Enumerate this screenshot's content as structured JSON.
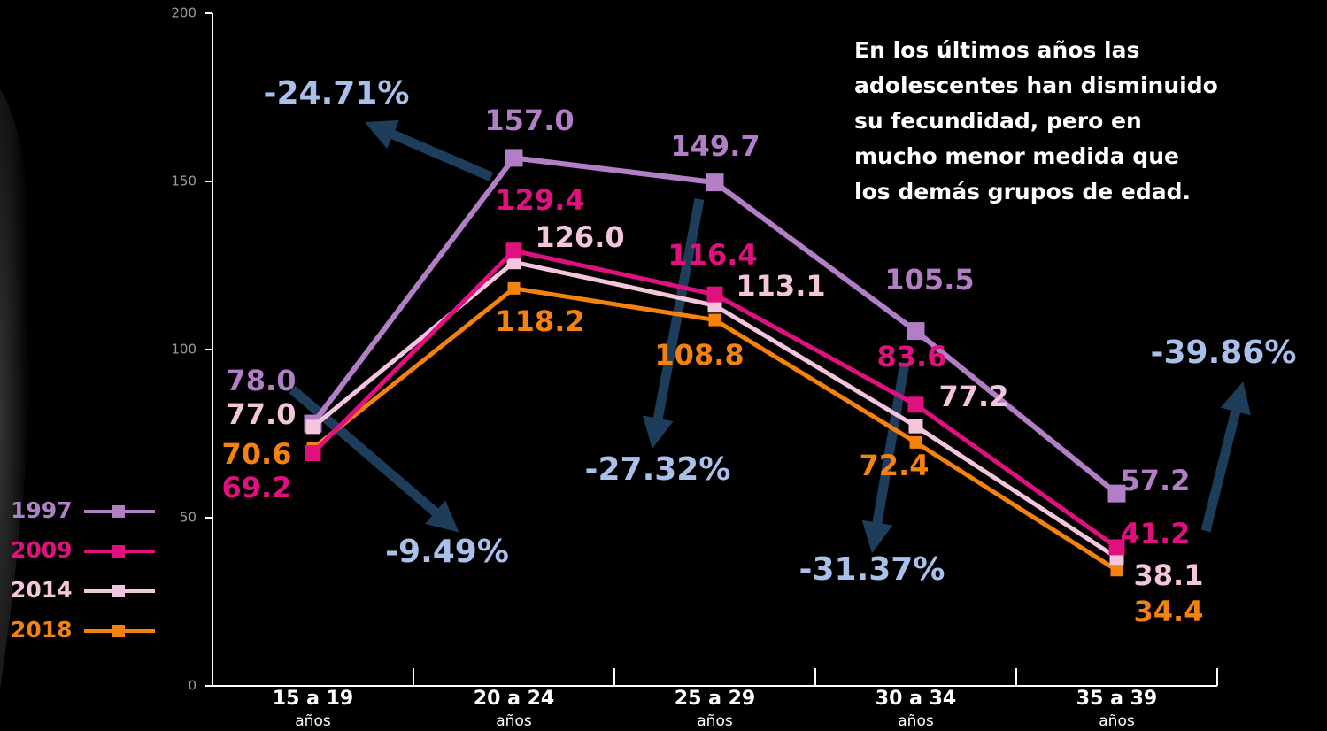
{
  "chart_data": {
    "type": "line",
    "categories": [
      "15 a 19",
      "20 a 24",
      "25 a 29",
      "30 a 34",
      "35 a 39"
    ],
    "category_sublabels": [
      "años",
      "años",
      "años",
      "años",
      "años"
    ],
    "series": [
      {
        "name": "1997",
        "color": "#b27ec6",
        "values": [
          78.0,
          157.0,
          149.7,
          105.5,
          57.2
        ],
        "value_labels": [
          "78.0",
          "157.0",
          "149.7",
          "105.5",
          "57.2"
        ]
      },
      {
        "name": "2009",
        "color": "#e0117f",
        "values": [
          69.2,
          129.4,
          116.4,
          83.6,
          41.2
        ],
        "value_labels": [
          "69.2",
          "129.4",
          "116.4",
          "83.6",
          "41.2"
        ]
      },
      {
        "name": "2014",
        "color": "#f4c6de",
        "values": [
          77.0,
          126.0,
          113.1,
          77.2,
          38.1
        ],
        "value_labels": [
          "77.0",
          "126.0",
          "113.1",
          "77.2",
          "38.1"
        ]
      },
      {
        "name": "2018",
        "color": "#f5820f",
        "values": [
          70.6,
          118.2,
          108.8,
          72.4,
          34.4
        ],
        "value_labels": [
          "70.6",
          "118.2",
          "108.8",
          "72.4",
          "34.4"
        ]
      }
    ],
    "ylim": [
      0,
      200
    ],
    "yticks": [
      0,
      50,
      100,
      150,
      200
    ],
    "annotations": [
      "-24.71%",
      "-9.49%",
      "-27.32%",
      "-31.37%",
      "-39.86%"
    ],
    "note_lines": [
      "En los últimos años las",
      "adolescentes han disminuido",
      "su fecundidad, pero en",
      "mucho menor medida que",
      "los demás grupos de edad."
    ]
  }
}
